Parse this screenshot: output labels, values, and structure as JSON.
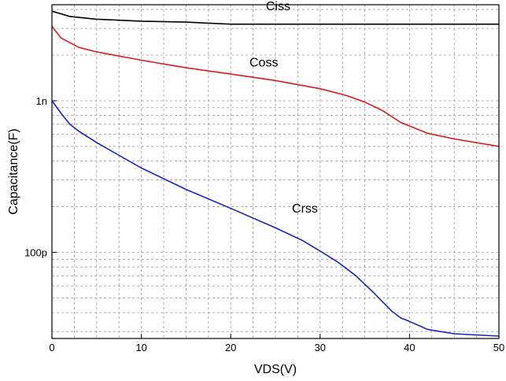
{
  "chart_data": {
    "type": "line",
    "xlabel": "VDS(V)",
    "ylabel": "Capacitance(F)",
    "xlim": [
      0,
      50
    ],
    "ylim": [
      2.7e-11,
      4.3e-09
    ],
    "yscale": "log",
    "grid": true,
    "xticks": [
      0,
      10,
      20,
      30,
      40,
      50
    ],
    "xtick_labels": [
      "0",
      "10",
      "20",
      "30",
      "40",
      "50"
    ],
    "yticks": [
      1e-10,
      1e-09
    ],
    "ytick_labels": [
      "100p",
      "1n"
    ],
    "colors": {
      "Ciss": "#000000",
      "Coss": "#d91c1c",
      "Crss": "#1a22c4"
    },
    "series": [
      {
        "name": "Ciss",
        "color": "#000000",
        "x": [
          0,
          2,
          5,
          10,
          15,
          20,
          25,
          30,
          35,
          40,
          45,
          50
        ],
        "y": [
          3.9e-09,
          3.6e-09,
          3.45e-09,
          3.35e-09,
          3.3e-09,
          3.2e-09,
          3.2e-09,
          3.2e-09,
          3.2e-09,
          3.2e-09,
          3.2e-09,
          3.2e-09
        ]
      },
      {
        "name": "Coss",
        "color": "#d91c1c",
        "x": [
          0,
          1,
          3,
          5,
          10,
          15,
          20,
          25,
          30,
          33,
          35,
          37,
          39,
          42,
          45,
          50
        ],
        "y": [
          3.1e-09,
          2.6e-09,
          2.25e-09,
          2.1e-09,
          1.85e-09,
          1.65e-09,
          1.5e-09,
          1.36e-09,
          1.2e-09,
          1.08e-09,
          9.8e-10,
          8.6e-10,
          7.2e-10,
          6.1e-10,
          5.6e-10,
          5e-10
        ]
      },
      {
        "name": "Crss",
        "color": "#1a22c4",
        "x": [
          0,
          1,
          2,
          3,
          5,
          10,
          15,
          20,
          25,
          28,
          30,
          32,
          34,
          36,
          38,
          39,
          40,
          42,
          45,
          50
        ],
        "y": [
          1e-09,
          8.3e-10,
          7e-10,
          6.3e-10,
          5.3e-10,
          3.6e-10,
          2.6e-10,
          1.95e-10,
          1.45e-10,
          1.2e-10,
          1.02e-10,
          8.6e-11,
          7e-11,
          5.4e-11,
          4.1e-11,
          3.7e-11,
          3.5e-11,
          3.1e-11,
          2.9e-11,
          2.8e-11
        ]
      }
    ]
  }
}
